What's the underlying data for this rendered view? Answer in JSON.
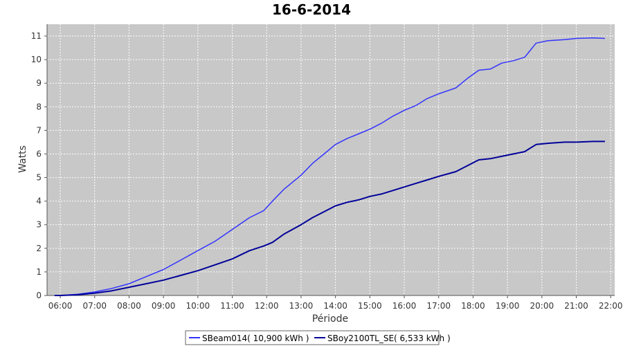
{
  "chart_data": {
    "type": "line",
    "title": "16-6-2014",
    "xlabel": "Période",
    "ylabel": "Watts",
    "x_ticks": [
      "06:00",
      "07:00",
      "08:00",
      "09:00",
      "10:00",
      "11:00",
      "12:00",
      "13:00",
      "14:00",
      "15:00",
      "16:00",
      "17:00",
      "18:00",
      "19:00",
      "20:00",
      "21:00",
      "22:00"
    ],
    "xlim": [
      "05:37",
      "22:07"
    ],
    "ylim": [
      0,
      11.5
    ],
    "y_ticks": [
      0,
      1,
      2,
      3,
      4,
      5,
      6,
      7,
      8,
      9,
      10,
      11
    ],
    "grid": true,
    "legend_position": "bottom",
    "series": [
      {
        "name": "SBeam014( 10,900 kWh )",
        "color": "#3333ff",
        "x": [
          "05:50",
          "06:00",
          "06:30",
          "07:00",
          "07:30",
          "08:00",
          "08:30",
          "09:00",
          "09:30",
          "10:00",
          "10:30",
          "11:00",
          "11:30",
          "11:55",
          "12:10",
          "12:30",
          "13:00",
          "13:20",
          "13:40",
          "14:00",
          "14:20",
          "14:40",
          "15:00",
          "15:20",
          "15:40",
          "16:00",
          "16:20",
          "16:40",
          "17:00",
          "17:30",
          "17:50",
          "18:10",
          "18:30",
          "18:50",
          "19:10",
          "19:30",
          "19:50",
          "20:10",
          "20:40",
          "21:00",
          "21:30",
          "21:50"
        ],
        "y": [
          0,
          0,
          0.05,
          0.15,
          0.3,
          0.5,
          0.8,
          1.1,
          1.5,
          1.9,
          2.3,
          2.8,
          3.3,
          3.6,
          4.0,
          4.5,
          5.1,
          5.6,
          6.0,
          6.4,
          6.65,
          6.85,
          7.05,
          7.3,
          7.6,
          7.85,
          8.05,
          8.35,
          8.55,
          8.8,
          9.2,
          9.55,
          9.6,
          9.85,
          9.95,
          10.1,
          10.7,
          10.8,
          10.85,
          10.9,
          10.92,
          10.9
        ]
      },
      {
        "name": "SBoy2100TL_SE( 6,533 kWh )",
        "color": "#000099",
        "x": [
          "05:50",
          "06:00",
          "06:30",
          "07:00",
          "07:30",
          "08:00",
          "08:30",
          "09:00",
          "09:30",
          "10:00",
          "10:30",
          "11:00",
          "11:30",
          "11:55",
          "12:10",
          "12:30",
          "13:00",
          "13:20",
          "13:40",
          "14:00",
          "14:20",
          "14:40",
          "15:00",
          "15:20",
          "15:40",
          "16:00",
          "16:20",
          "16:40",
          "17:00",
          "17:30",
          "17:50",
          "18:10",
          "18:30",
          "18:50",
          "19:10",
          "19:30",
          "19:50",
          "20:10",
          "20:40",
          "21:00",
          "21:30",
          "21:50"
        ],
        "y": [
          0,
          0,
          0.03,
          0.1,
          0.2,
          0.35,
          0.5,
          0.65,
          0.85,
          1.05,
          1.3,
          1.55,
          1.9,
          2.1,
          2.25,
          2.6,
          3.0,
          3.3,
          3.55,
          3.8,
          3.95,
          4.05,
          4.2,
          4.3,
          4.45,
          4.6,
          4.75,
          4.9,
          5.05,
          5.25,
          5.5,
          5.75,
          5.8,
          5.9,
          6.0,
          6.1,
          6.4,
          6.45,
          6.5,
          6.5,
          6.53,
          6.53
        ]
      }
    ]
  }
}
